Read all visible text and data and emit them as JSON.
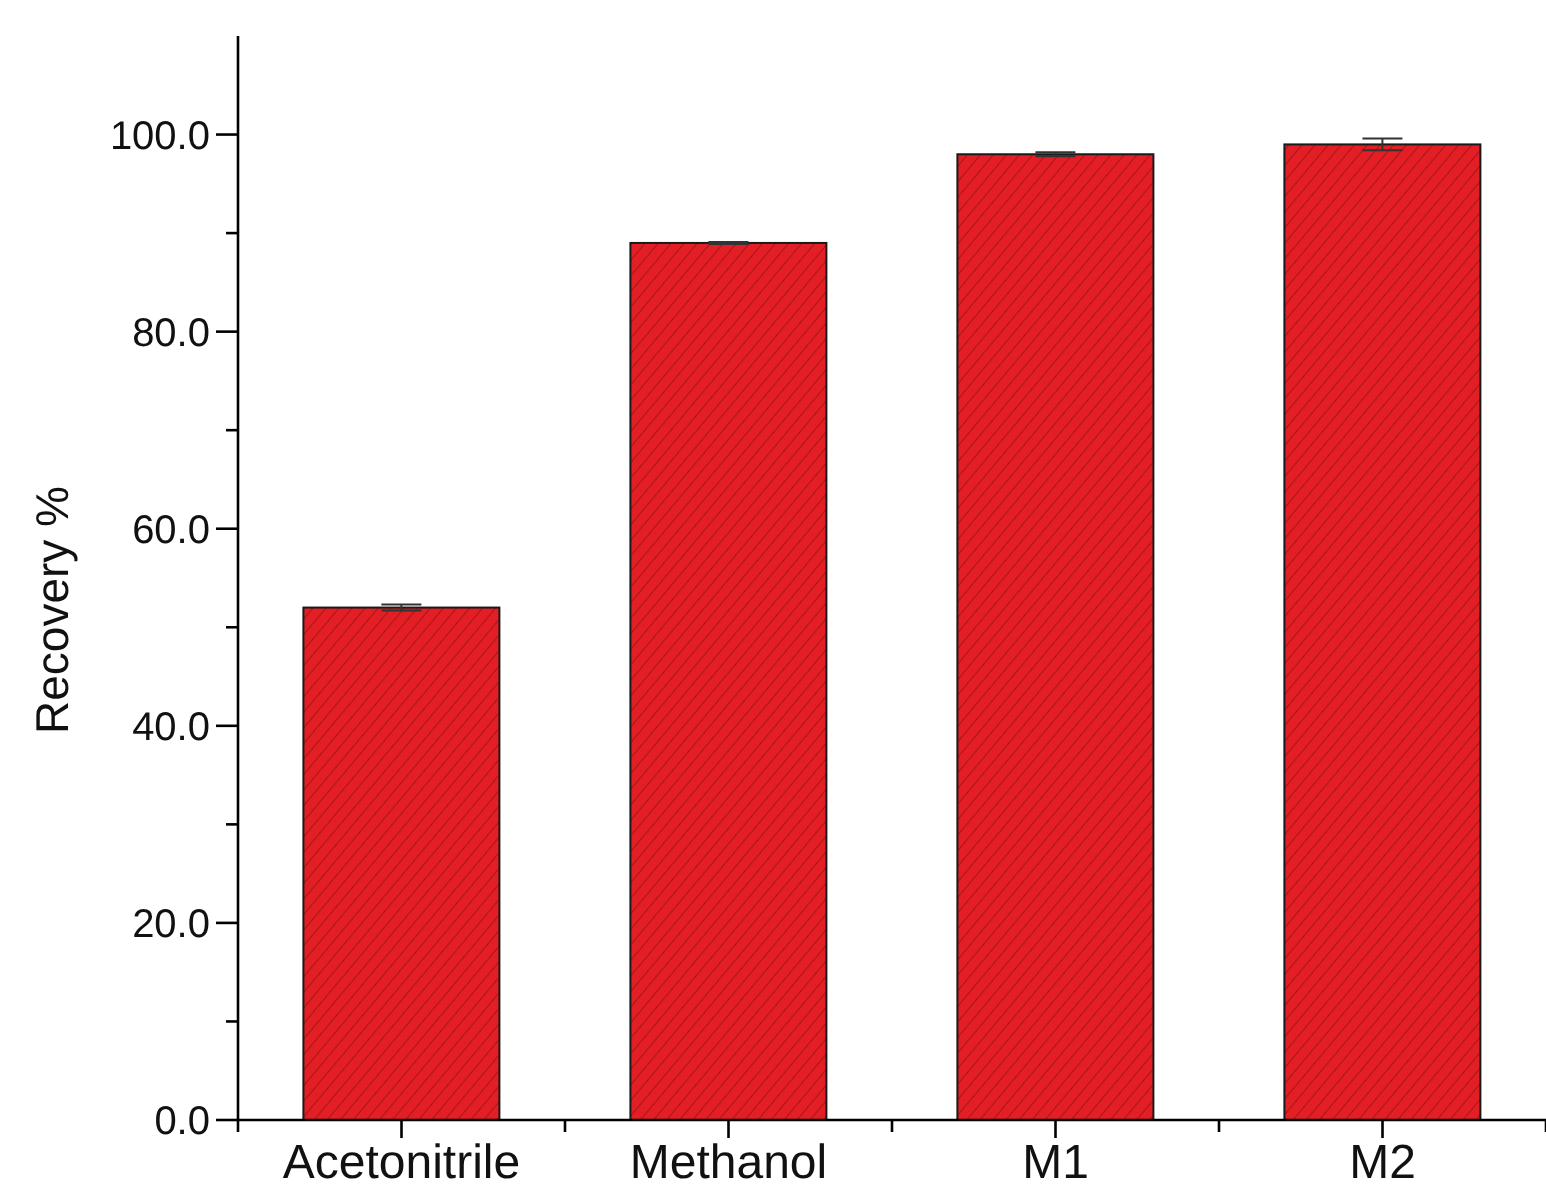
{
  "chart_data": {
    "type": "bar",
    "ylabel": "Recovery %",
    "categories": [
      "Acetonitrile",
      "Methanol",
      "M1",
      "M2"
    ],
    "values": [
      52,
      89,
      98,
      99
    ],
    "errors": [
      0.3,
      0.1,
      0.2,
      0.6
    ],
    "color": "#e31e24",
    "ylim": [
      0,
      110
    ],
    "yticks": [
      {
        "value": 0,
        "label": "0.0"
      },
      {
        "value": 10,
        "label": null
      },
      {
        "value": 20,
        "label": "20.0"
      },
      {
        "value": 30,
        "label": null
      },
      {
        "value": 40,
        "label": "40.0"
      },
      {
        "value": 50,
        "label": null
      },
      {
        "value": 60,
        "label": "60.0"
      },
      {
        "value": 70,
        "label": null
      },
      {
        "value": 80,
        "label": "80.0"
      },
      {
        "value": 90,
        "label": null
      },
      {
        "value": 100,
        "label": "100.0"
      }
    ]
  }
}
